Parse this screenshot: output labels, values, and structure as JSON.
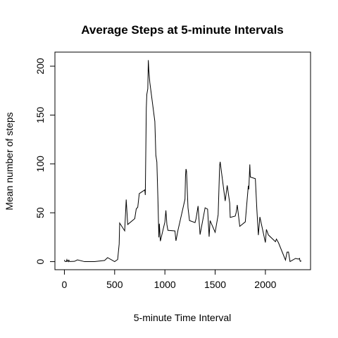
{
  "chart_data": {
    "type": "line",
    "title": "Average Steps at 5-minute Intervals",
    "x_label": "5-minute Time Interval",
    "y_label": "Mean number of steps",
    "x": [
      0,
      5,
      10,
      15,
      20,
      25,
      30,
      35,
      40,
      45,
      50,
      55,
      100,
      130,
      200,
      300,
      400,
      430,
      500,
      530,
      545,
      550,
      600,
      615,
      630,
      700,
      715,
      730,
      745,
      800,
      805,
      815,
      820,
      830,
      835,
      840,
      850,
      900,
      910,
      920,
      930,
      940,
      945,
      955,
      1000,
      1010,
      1020,
      1030,
      1100,
      1110,
      1130,
      1200,
      1205,
      1210,
      1215,
      1230,
      1245,
      1300,
      1310,
      1330,
      1350,
      1400,
      1425,
      1440,
      1450,
      1500,
      1530,
      1545,
      1550,
      1600,
      1620,
      1645,
      1650,
      1700,
      1710,
      1720,
      1745,
      1800,
      1830,
      1835,
      1845,
      1850,
      1900,
      1915,
      1930,
      1945,
      2000,
      2010,
      2030,
      2100,
      2110,
      2130,
      2200,
      2215,
      2230,
      2245,
      2300,
      2330,
      2340,
      2345,
      2350,
      2355
    ],
    "series": [
      {
        "name": "Mean number of steps",
        "color": "#000000",
        "values": [
          1.7,
          0.3,
          0.1,
          0.2,
          0.1,
          2.1,
          0.5,
          0.9,
          0,
          1.5,
          0.3,
          0.1,
          0.3,
          1.8,
          0,
          0,
          1.2,
          4.1,
          0,
          2.2,
          18,
          39.5,
          31.5,
          63.5,
          38,
          44,
          54,
          55.7,
          69.6,
          73.4,
          68.2,
          157,
          171,
          177,
          206.2,
          195.9,
          183.4,
          143.5,
          109,
          102,
          66.2,
          24.8,
          38.8,
          21,
          40.6,
          52.4,
          38,
          32,
          31.4,
          21.3,
          32,
          63.9,
          87.6,
          94.8,
          92.8,
          55,
          42,
          40,
          43.9,
          56.9,
          27.7,
          55.1,
          53.7,
          25.5,
          42,
          30,
          48,
          98.6,
          102.1,
          62.1,
          78,
          60,
          45.3,
          46.6,
          50.7,
          58,
          36.1,
          40.7,
          77.7,
          74,
          99.5,
          86.6,
          84.9,
          53.5,
          27.2,
          45.7,
          19.6,
          33,
          27.3,
          20.4,
          23.1,
          19.4,
          1.6,
          9.7,
          9.8,
          0.1,
          3.3,
          2.6,
          3.3,
          0.6,
          0.2,
          1.1
        ]
      }
    ],
    "xlim": [
      -94.2,
      2449.2
    ],
    "ylim": [
      -8.25,
      214.42
    ],
    "xticks": [
      0,
      500,
      1000,
      1500,
      2000
    ],
    "yticks": [
      0,
      50,
      100,
      150,
      200
    ],
    "grid": false
  }
}
